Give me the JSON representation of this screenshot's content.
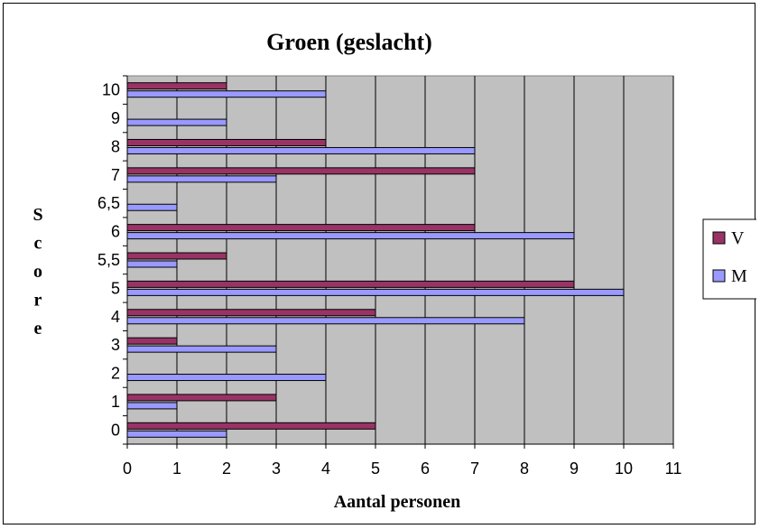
{
  "chart_data": {
    "type": "bar",
    "orientation": "horizontal",
    "title": "Groen (geslacht)",
    "xlabel": "Aantal personen",
    "ylabel": "Score",
    "categories": [
      "0",
      "1",
      "2",
      "3",
      "4",
      "5",
      "5,5",
      "6",
      "6,5",
      "7",
      "8",
      "9",
      "10"
    ],
    "series": [
      {
        "name": "V",
        "color": "#993366",
        "values": [
          5,
          3,
          0,
          1,
          5,
          9,
          2,
          7,
          0,
          7,
          4,
          0,
          2
        ]
      },
      {
        "name": "M",
        "color": "#9999ff",
        "values": [
          2,
          1,
          4,
          3,
          8,
          10,
          1,
          9,
          1,
          3,
          7,
          2,
          4
        ]
      }
    ],
    "xlim": [
      0,
      11
    ],
    "xticks": [
      "0",
      "1",
      "2",
      "3",
      "4",
      "5",
      "6",
      "7",
      "8",
      "9",
      "10",
      "11"
    ],
    "grid": true,
    "plot_background": "#c0c0c0",
    "legend_position": "right"
  }
}
